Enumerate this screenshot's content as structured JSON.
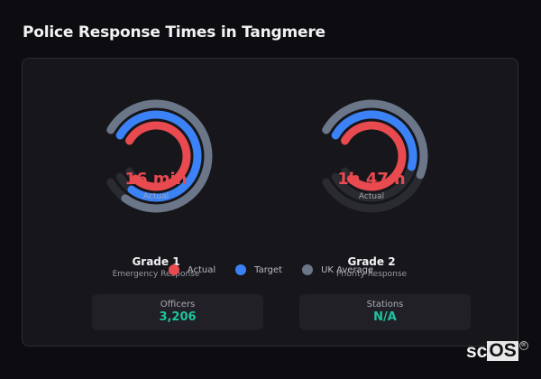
{
  "header": {
    "title": "Police Response Times in Tangmere"
  },
  "colors": {
    "actual": "#e84a4f",
    "target": "#3b82f6",
    "uk_average": "#6b7689",
    "track": "#2a2b31",
    "stat_value": "#1ec4a0"
  },
  "gauges": [
    {
      "name": "Grade 1",
      "description": "Emergency Response",
      "value_label": "16 min",
      "sub_label": "Actual"
    },
    {
      "name": "Grade 2",
      "description": "Priority Response",
      "value_label": "1h 47m",
      "sub_label": "Actual"
    }
  ],
  "legend": [
    {
      "label": "Actual",
      "color": "#e84a4f"
    },
    {
      "label": "Target",
      "color": "#3b82f6"
    },
    {
      "label": "UK Average",
      "color": "#6b7689"
    }
  ],
  "stats": [
    {
      "label": "Officers",
      "value": "3,206"
    },
    {
      "label": "Stations",
      "value": "N/A"
    }
  ],
  "chart_data": {
    "type": "radial-bar",
    "title": "Police Response Times in Tangmere",
    "categories": [
      "Grade 1 (Emergency Response)",
      "Grade 2 (Priority Response)"
    ],
    "series": [
      {
        "name": "Actual",
        "fill_fraction": [
          0.94,
          0.94
        ],
        "display": [
          "16 min",
          "1h 47m"
        ]
      },
      {
        "name": "Target",
        "fill_fraction": [
          0.92,
          0.55
        ]
      },
      {
        "name": "UK Average",
        "fill_fraction": [
          0.92,
          0.57
        ]
      }
    ],
    "arc_span_degrees": 300,
    "legend_position": "bottom"
  },
  "branding": {
    "logo_left": "sc",
    "logo_right": "OS",
    "registered": "®"
  }
}
